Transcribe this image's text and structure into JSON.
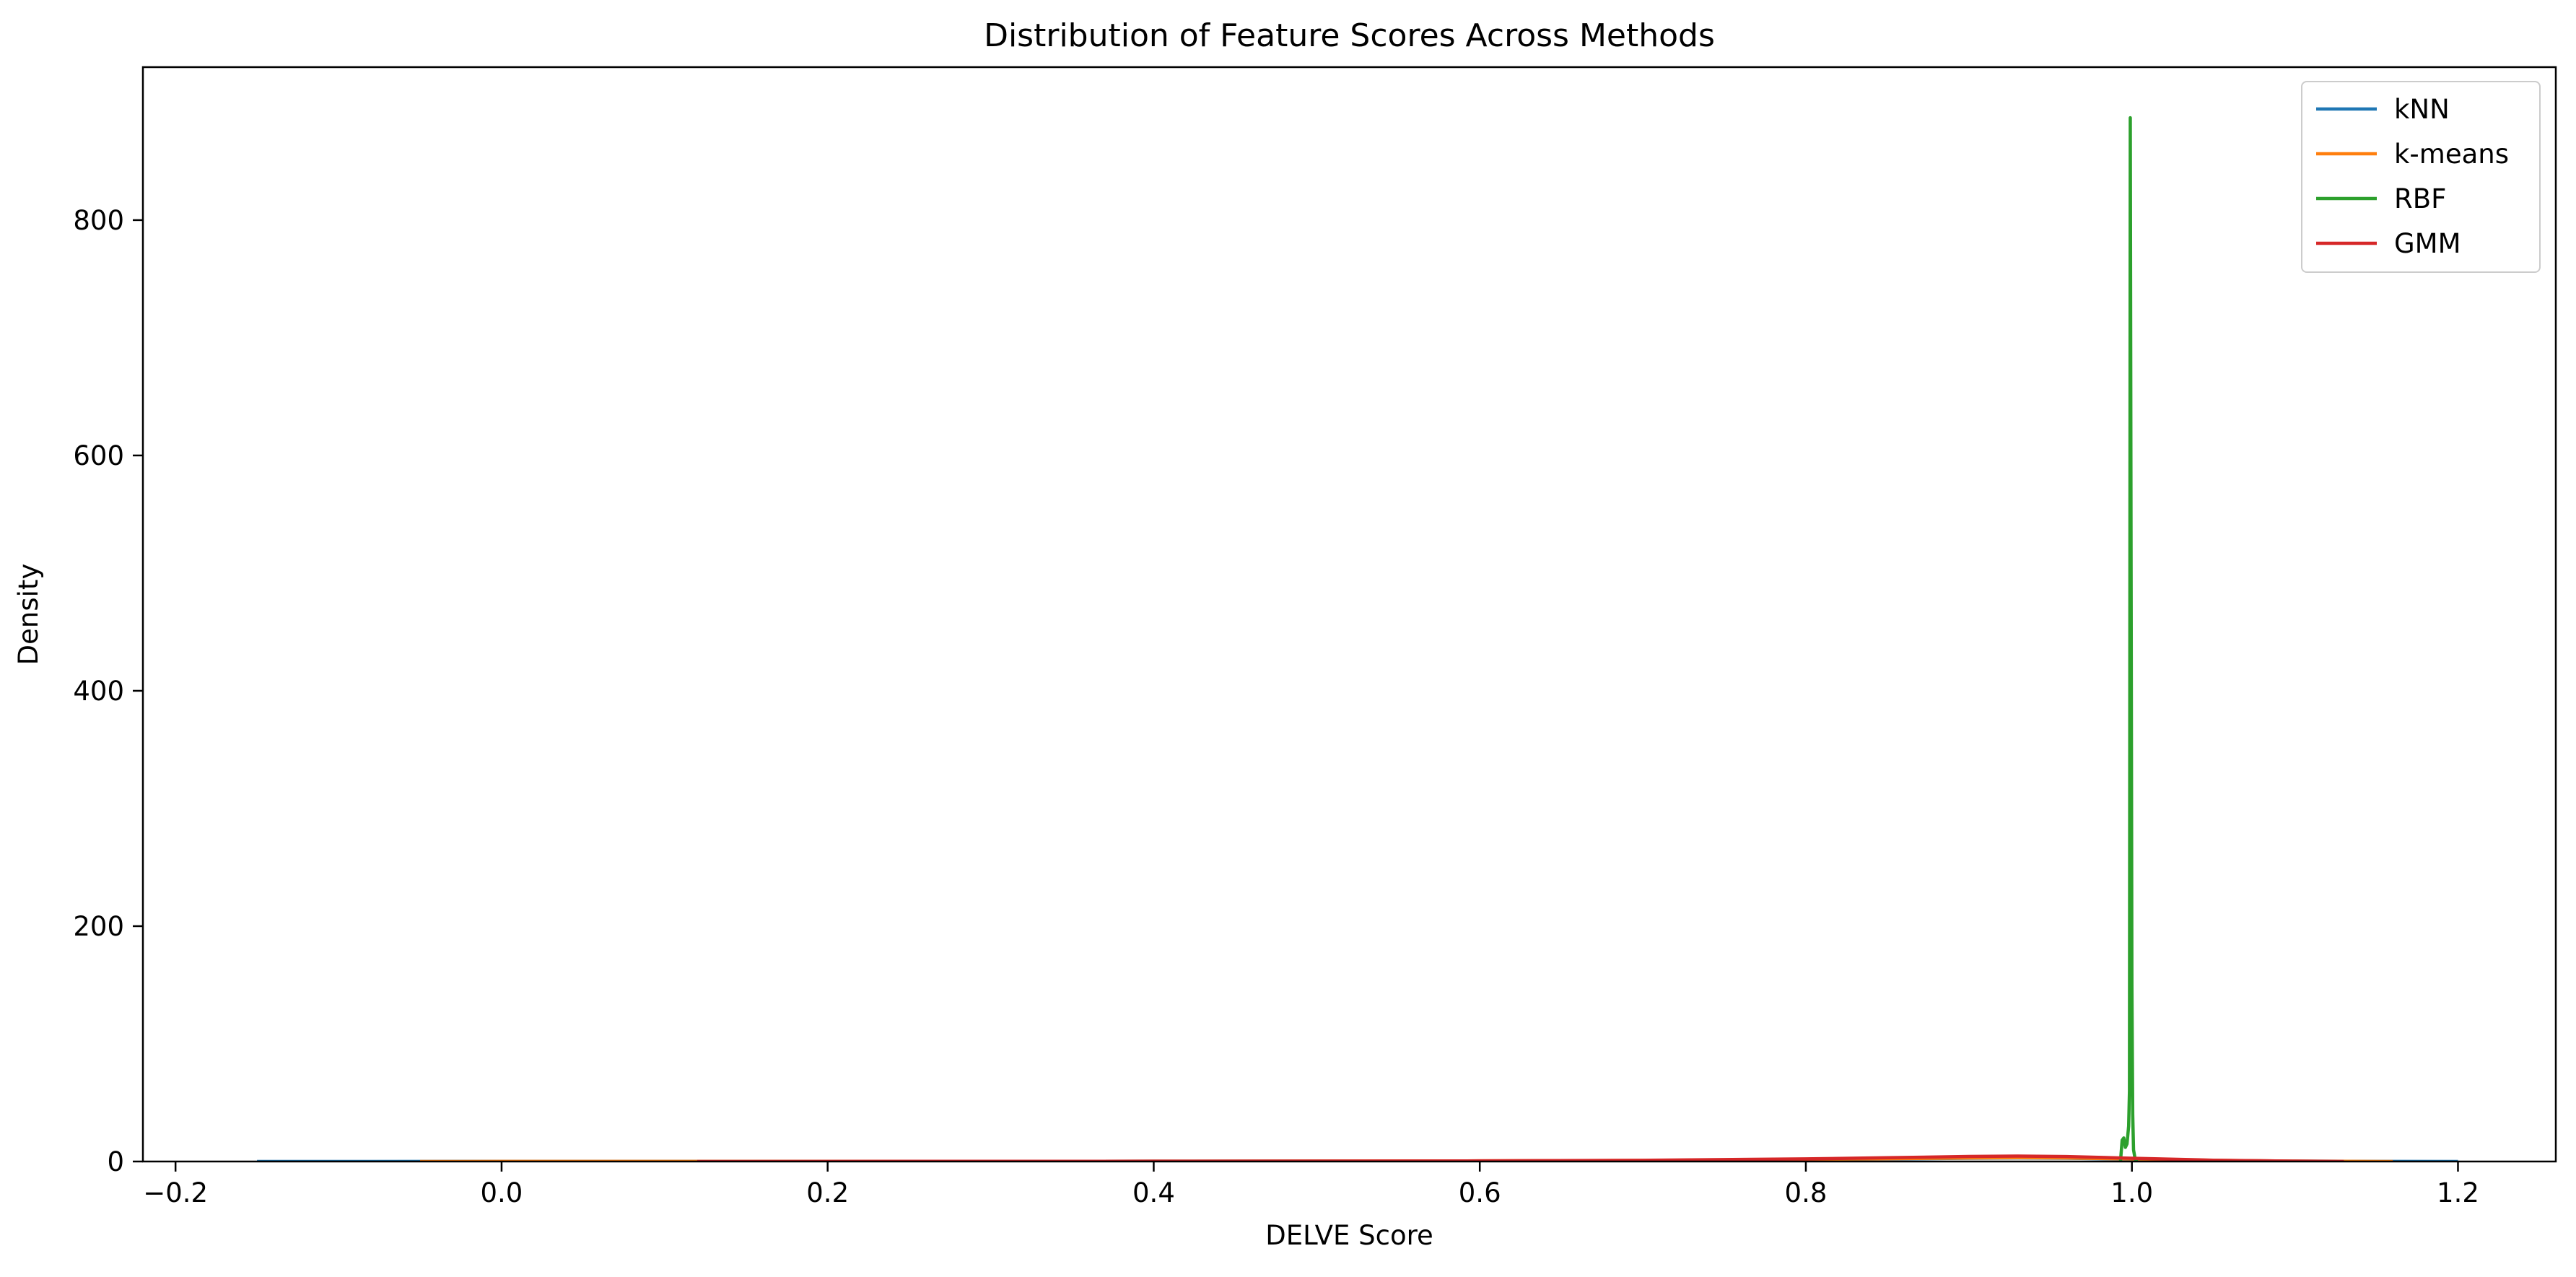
{
  "chart_data": {
    "type": "line",
    "title": "Distribution of Feature Scores Across Methods",
    "xlabel": "DELVE Score",
    "ylabel": "Density",
    "xlim": [
      -0.22,
      1.26
    ],
    "ylim": [
      0,
      930
    ],
    "xticks": [
      -0.2,
      0.0,
      0.2,
      0.4,
      0.6,
      0.8,
      1.0,
      1.2
    ],
    "xtick_labels": [
      "−0.2",
      "0.0",
      "0.2",
      "0.4",
      "0.6",
      "0.8",
      "1.0",
      "1.2"
    ],
    "yticks": [
      0,
      200,
      400,
      600,
      800
    ],
    "ytick_labels": [
      "0",
      "200",
      "400",
      "600",
      "800"
    ],
    "grid": false,
    "legend_position": "top-right",
    "series": [
      {
        "name": "kNN",
        "color": "#1f77b4",
        "x": [
          -0.15,
          0.0,
          0.2,
          0.4,
          0.6,
          0.7,
          0.8,
          0.85,
          0.9,
          0.93,
          0.96,
          1.0,
          1.05,
          1.1,
          1.15,
          1.2
        ],
        "y": [
          0.0,
          0.05,
          0.1,
          0.2,
          0.4,
          0.8,
          1.6,
          2.2,
          2.8,
          3.0,
          2.8,
          2.0,
          0.9,
          0.3,
          0.1,
          0.0
        ]
      },
      {
        "name": "k-means",
        "color": "#ff7f0e",
        "x": [
          -0.05,
          0.0,
          0.2,
          0.4,
          0.6,
          0.7,
          0.8,
          0.85,
          0.9,
          0.93,
          0.96,
          1.0,
          1.05,
          1.1,
          1.16
        ],
        "y": [
          0.0,
          0.05,
          0.1,
          0.2,
          0.5,
          0.9,
          1.8,
          2.4,
          3.0,
          3.2,
          3.0,
          2.2,
          1.0,
          0.3,
          0.0
        ]
      },
      {
        "name": "RBF",
        "color": "#2ca02c",
        "x": [
          0.993,
          0.994,
          0.995,
          0.996,
          0.997,
          0.998,
          0.9985,
          0.999,
          0.9995,
          1.0,
          1.0005,
          1.001,
          1.002,
          1.003
        ],
        "y": [
          0,
          18,
          20,
          12,
          15,
          30,
          60,
          887,
          500,
          150,
          40,
          10,
          2,
          0
        ]
      },
      {
        "name": "GMM",
        "color": "#d62728",
        "x": [
          0.12,
          0.2,
          0.4,
          0.6,
          0.7,
          0.8,
          0.85,
          0.9,
          0.93,
          0.96,
          1.0,
          1.05,
          1.1,
          1.13
        ],
        "y": [
          0.0,
          0.1,
          0.2,
          0.5,
          1.0,
          2.2,
          3.2,
          4.3,
          4.6,
          4.2,
          2.8,
          1.1,
          0.3,
          0.0
        ]
      }
    ]
  }
}
